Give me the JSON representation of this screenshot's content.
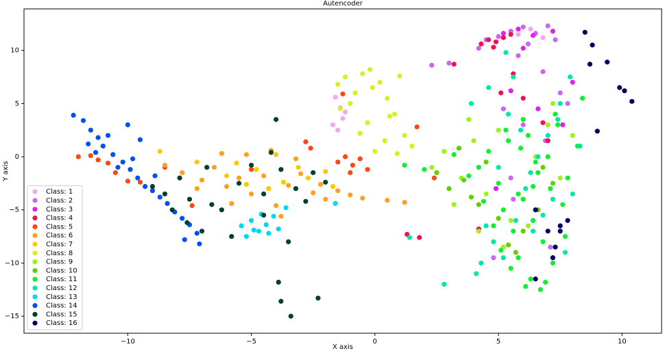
{
  "chart_data": {
    "type": "scatter",
    "title": "Autencoder",
    "x_label": "X axis",
    "y_label": "Y axis",
    "xlim": [
      -14.2,
      11.6
    ],
    "ylim": [
      -16.6,
      13.9
    ],
    "xticks": [
      {
        "value": -10,
        "label": "−10"
      },
      {
        "value": -5,
        "label": "−5"
      },
      0,
      5,
      10
    ],
    "yticks": [
      {
        "value": -15,
        "label": "−15"
      },
      {
        "value": -10,
        "label": "−10"
      },
      {
        "value": -5,
        "label": "−5"
      },
      0,
      5,
      10
    ],
    "grid": false,
    "legend": "lower left",
    "series": [
      {
        "name": "Class: 1",
        "color": "#f0a8f0",
        "x": [
          -1.7,
          -1.5,
          -1.2,
          -1.6,
          -1.3,
          -1.0,
          -1.4,
          5.8,
          6.3,
          6.8
        ],
        "values": [
          3.0,
          2.5,
          4.2,
          5.6,
          3.6,
          5.0,
          4.6,
          11.5,
          12.0,
          11.2
        ]
      },
      {
        "name": "Class: 2",
        "color": "#c868f0",
        "x": [
          4.2,
          4.5,
          5.0,
          5.5,
          6.0,
          6.5,
          7.0,
          7.3,
          6.2,
          5.8,
          6.8,
          7.5,
          5.2,
          6.0,
          7.8,
          5.5,
          6.4,
          7.1,
          4.8,
          5.6,
          6.9,
          2.3,
          3.0
        ],
        "values": [
          10.2,
          11.0,
          11.3,
          11.8,
          12.2,
          11.6,
          12.3,
          11.0,
          10.6,
          9.5,
          8.0,
          6.0,
          4.5,
          3.0,
          5.0,
          -2.0,
          -6.0,
          -8.5,
          -9.5,
          -4.0,
          1.5,
          8.6,
          8.8
        ]
      },
      {
        "name": "Class: 3",
        "color": "#e020f0",
        "x": [
          5.2,
          5.8,
          6.4,
          6.0,
          7.2,
          6.6,
          5.5,
          7.6,
          4.9,
          8.0
        ],
        "values": [
          11.6,
          12.0,
          11.4,
          10.2,
          11.8,
          4.5,
          6.2,
          3.0,
          -3.0,
          7.0
        ]
      },
      {
        "name": "Class: 4",
        "color": "#f01058",
        "x": [
          4.3,
          4.6,
          4.9,
          5.2,
          5.5,
          4.8,
          5.1,
          6.0,
          6.8,
          5.6,
          4.2,
          1.3,
          1.8,
          7.0,
          3.2
        ],
        "values": [
          10.6,
          11.0,
          10.8,
          11.2,
          11.5,
          10.3,
          6.0,
          5.5,
          3.2,
          7.8,
          -6.8,
          -7.3,
          -7.6,
          1.5,
          8.7
        ]
      },
      {
        "name": "Class: 5",
        "color": "#ff4810",
        "x": [
          -12.0,
          -11.5,
          -11.2,
          -10.8,
          -10.5,
          -10.0,
          -9.5,
          -9.0,
          -8.5,
          -1.5,
          -1.2,
          -0.9,
          -0.6,
          -0.3,
          -1.0,
          -2.6,
          -2.8,
          1.7,
          2.4,
          -1.3,
          -7.4,
          -5.0
        ],
        "values": [
          0.0,
          0.1,
          -0.3,
          -0.6,
          -1.5,
          -2.3,
          -2.4,
          -3.2,
          -1.0,
          -0.5,
          0.0,
          -0.8,
          -0.2,
          -1.2,
          -1.5,
          0.8,
          1.4,
          2.8,
          -2.0,
          5.9,
          -4.6,
          -1.2
        ]
      },
      {
        "name": "Class: 6",
        "color": "#ffa020",
        "x": [
          -8.5,
          -7.8,
          -7,
          -6.5,
          -6,
          -5.5,
          -5,
          -4.5,
          -4,
          -3.5,
          -3,
          -2.5,
          -2,
          -1.5,
          -1,
          -0.5,
          0.5,
          1.2,
          -6.2,
          -5.2,
          -4.2,
          -3.2,
          -2.2,
          -5.8,
          -3.8,
          -7.2
        ],
        "values": [
          -0.8,
          -1.5,
          -2.2,
          -1.0,
          -2.8,
          -2.0,
          -3.5,
          -1.8,
          -4.6,
          -2.7,
          -1.6,
          -3.4,
          -4.0,
          -3.2,
          -3.6,
          -3.9,
          -4.1,
          -4.3,
          0.3,
          0.2,
          0.6,
          -0.2,
          -2.6,
          -4.4,
          -5.6,
          -3.0
        ]
      },
      {
        "name": "Class: 7",
        "color": "#ffc800",
        "x": [
          -8.7,
          -7.2,
          -6.0,
          -5.2,
          -4.8,
          -4.3,
          -3.7,
          -3.1,
          -2.7,
          -2.0,
          -1.7,
          -5.6,
          -4.0
        ],
        "values": [
          0.5,
          -0.5,
          -1.8,
          -2.6,
          -1.2,
          -3.0,
          -2.4,
          -1.0,
          -2.0,
          -1.4,
          -2.8,
          -0.6,
          0.2
        ]
      },
      {
        "name": "Class: 8",
        "color": "#d8f020",
        "x": [
          -1.5,
          -1.2,
          -0.8,
          -0.5,
          -0.2,
          0.2,
          0.5,
          0.8,
          1.2,
          1.5,
          -1.0,
          -0.3,
          0.4,
          0.0,
          -0.6,
          0.9,
          -1.4,
          0.6,
          -0.1,
          1.0
        ],
        "values": [
          6.8,
          7.5,
          6.0,
          7.8,
          8.2,
          7.0,
          5.5,
          4.0,
          2.0,
          1.0,
          5.0,
          3.2,
          1.5,
          0.5,
          2.2,
          0.3,
          4.5,
          3.8,
          6.5,
          7.6
        ]
      },
      {
        "name": "Class: 9",
        "color": "#a0f020",
        "x": [
          2.3,
          2.8,
          3.5,
          4.0,
          4.5,
          5.0,
          5.5,
          6.0,
          6.5,
          7.0,
          7.5,
          3.2,
          4.2,
          5.2,
          6.2,
          7.2,
          8.0,
          3.8
        ],
        "values": [
          -1.0,
          0.5,
          -2.0,
          1.5,
          -3.5,
          2.5,
          -6.0,
          -4.0,
          0.0,
          3.0,
          -2.0,
          -4.5,
          -7.0,
          -8.5,
          -6.5,
          5.0,
          2.0,
          3.5
        ]
      },
      {
        "name": "Class: 10",
        "color": "#60d000",
        "x": [
          2.5,
          3.0,
          3.6,
          4.2,
          4.8,
          5.4,
          6.0,
          6.6,
          7.2,
          3.4,
          4.5,
          5.7,
          6.8,
          5.0,
          3.9
        ],
        "values": [
          -1.5,
          -3.0,
          -2.2,
          -4.5,
          -6.5,
          -8.3,
          -7.0,
          -5.0,
          -2.5,
          0.8,
          -0.5,
          -9.0,
          -1.0,
          -5.8,
          -3.8
        ]
      },
      {
        "name": "Class: 11",
        "color": "#10f030",
        "x": [
          4.2,
          4.6,
          5.0,
          5.4,
          5.8,
          6.2,
          6.6,
          7.0,
          7.4,
          7.8,
          8.2,
          5.2,
          5.6,
          6.0,
          6.4,
          6.8,
          7.2,
          7.6,
          4.8,
          5.3,
          5.9,
          6.5,
          7.1,
          7.7,
          6.3,
          6.1,
          6.9,
          5.1,
          4.4,
          7.3,
          6.7,
          5.5,
          3.8,
          3.2,
          8.4,
          2.0,
          1.2,
          6.0,
          6.4,
          5.8
        ],
        "values": [
          -1.0,
          0.5,
          -2.5,
          1.5,
          -3.5,
          2.0,
          -1.5,
          0.0,
          3.0,
          -2.0,
          1.0,
          -5.0,
          -7.0,
          -4.0,
          -6.0,
          -8.0,
          -10.0,
          -4.5,
          -6.5,
          2.5,
          0.8,
          -0.5,
          -3.0,
          -7.5,
          -11.5,
          -12.2,
          -11.8,
          -8.8,
          -4.2,
          4.0,
          -12.5,
          -10.5,
          -1.8,
          0.2,
          5.5,
          -1.2,
          -0.8,
          3.5,
          -2.8,
          -9.5
        ]
      },
      {
        "name": "Class: 12",
        "color": "#00e8a8",
        "x": [
          4.3,
          4.8,
          5.2,
          5.7,
          6.1,
          6.6,
          7.0,
          7.5,
          7.9,
          8.3,
          4.6,
          5.4,
          6.3,
          7.2,
          8.0,
          4.1,
          5.0,
          5.9,
          6.8,
          7.7,
          3.9,
          4.5,
          5.6,
          6.4,
          2.8,
          1.4,
          5.3,
          7.4
        ],
        "values": [
          -10.0,
          -8.0,
          -9.5,
          -6.0,
          -3.0,
          0.0,
          2.0,
          5.0,
          7.5,
          1.0,
          6.5,
          4.0,
          -1.5,
          -4.0,
          -3.5,
          -11.0,
          -1.0,
          2.5,
          -5.5,
          -9.0,
          5.0,
          -6.5,
          7.5,
          -7.0,
          -12.0,
          -7.6,
          9.8,
          3.5
        ]
      },
      {
        "name": "Class: 13",
        "color": "#00d8f0",
        "x": [
          -5.4,
          -5.0,
          -4.7,
          -4.4,
          -4.1,
          -3.9,
          -5.2,
          -4.6,
          -4.3,
          -3.6,
          -4.9,
          -1.6
        ],
        "values": [
          -6.5,
          -6.0,
          -7.0,
          -6.4,
          -5.6,
          -6.8,
          -7.5,
          -5.4,
          -7.2,
          -4.8,
          -6.9,
          -4.4
        ]
      },
      {
        "name": "Class: 14",
        "color": "#0050f0",
        "x": [
          -12.2,
          -11.8,
          -11.5,
          -11.2,
          -11.0,
          -10.6,
          -10.2,
          -9.9,
          -9.6,
          -9.3,
          -9.0,
          -8.7,
          -8.4,
          -8.1,
          -7.8,
          -7.5,
          -7.2,
          -10.8,
          -10.4,
          -9.8,
          -11.3,
          -9.5,
          -8.9,
          -7.7,
          -7.1,
          -10.0,
          -11.6
        ],
        "values": [
          3.9,
          3.4,
          2.5,
          1.8,
          1.0,
          0.2,
          -0.5,
          -1.2,
          -2.0,
          -2.8,
          -3.2,
          -3.8,
          -4.4,
          -5.2,
          -5.8,
          -6.4,
          -7.2,
          2.0,
          -1.0,
          -0.2,
          0.4,
          1.6,
          -1.8,
          -7.8,
          -8.2,
          3.0,
          1.2
        ]
      },
      {
        "name": "Class: 15",
        "color": "#004030",
        "x": [
          -9.0,
          -8.5,
          -8.2,
          -7.9,
          -7.5,
          -7.0,
          -6.8,
          -6.2,
          -5.5,
          -5.0,
          -4.5,
          -4.2,
          -3.8,
          -3.2,
          -2.8,
          -2.5,
          -2.0,
          -7.6,
          -4.0,
          -5.8,
          -3.5,
          -3.9,
          -3.8,
          -3.4,
          -2.3,
          -4.5,
          -6.6
        ],
        "values": [
          -2.8,
          -3.5,
          -5.0,
          -2.0,
          -4.0,
          -7.0,
          -1.0,
          -5.0,
          -2.5,
          -0.8,
          -3.5,
          0.4,
          -1.2,
          -3.0,
          -4.2,
          -1.5,
          -2.4,
          -6.2,
          3.5,
          -7.5,
          -8.0,
          -11.8,
          -13.6,
          -15.0,
          -13.3,
          -5.5,
          -4.5
        ]
      },
      {
        "name": "Class: 16",
        "color": "#000060",
        "x": [
          8.5,
          8.8,
          9.4,
          8.7,
          9.9,
          10.1,
          10.4,
          9.0,
          6.5,
          7.0,
          7.3,
          7.5,
          7.8,
          7.2,
          6.5,
          7.5
        ],
        "values": [
          11.7,
          10.5,
          8.9,
          8.7,
          6.5,
          6.2,
          5.2,
          2.4,
          -5.0,
          -7.0,
          -8.5,
          -7.0,
          -6.0,
          -9.5,
          -11.5,
          -6.5
        ]
      }
    ]
  }
}
